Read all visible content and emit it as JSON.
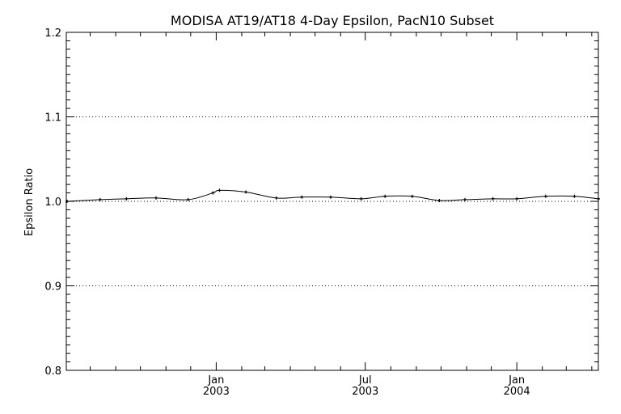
{
  "chart_data": {
    "type": "line",
    "title": "MODISA AT19/AT18 4-Day Epsilon, PacN10 Subset",
    "xlabel": "",
    "ylabel": "Epsilon Ratio",
    "ylim": [
      0.8,
      1.2
    ],
    "yticks": [
      {
        "value": 0.8,
        "label": "0.8"
      },
      {
        "value": 0.9,
        "label": "0.9"
      },
      {
        "value": 1.0,
        "label": "1.0"
      },
      {
        "value": 1.1,
        "label": "1.1"
      },
      {
        "value": 1.2,
        "label": "1.2"
      }
    ],
    "xlim": [
      "2002-07-03",
      "2004-04-09"
    ],
    "xticks": [
      {
        "date": "2003-01-01",
        "label_top": "Jan",
        "label_bottom": "2003"
      },
      {
        "date": "2003-07-01",
        "label_top": "Jul",
        "label_bottom": "2003"
      },
      {
        "date": "2004-01-01",
        "label_top": "Jan",
        "label_bottom": "2004"
      }
    ],
    "grid": {
      "horizontal_dotted_at": [
        0.9,
        1.0,
        1.1
      ]
    },
    "series": [
      {
        "x": [
          "2002-07-04",
          "2002-08-13",
          "2002-09-14",
          "2002-10-20",
          "2002-11-28",
          "2002-12-28",
          "2003-01-05",
          "2003-02-06",
          "2003-03-15",
          "2003-04-15",
          "2003-05-20",
          "2003-06-26",
          "2003-07-25",
          "2003-08-27",
          "2003-09-29",
          "2003-10-30",
          "2003-12-03",
          "2004-01-01",
          "2004-02-05",
          "2004-03-11",
          "2004-04-09"
        ],
        "y": [
          1.0,
          1.002,
          1.003,
          1.004,
          1.002,
          1.01,
          1.013,
          1.011,
          1.004,
          1.005,
          1.005,
          1.003,
          1.006,
          1.006,
          1.001,
          1.002,
          1.003,
          1.003,
          1.006,
          1.006,
          1.003
        ]
      }
    ]
  }
}
